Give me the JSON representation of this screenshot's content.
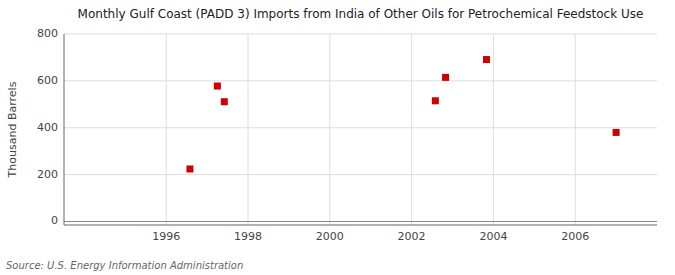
{
  "chart_data": {
    "type": "scatter",
    "title": "Monthly Gulf Coast (PADD 3) Imports from India of Other Oils for Petrochemical Feedstock Use",
    "ylabel": "Thousand Barrels",
    "source": "Source: U.S. Energy Information Administration",
    "x": [
      1996.58,
      1997.25,
      1997.42,
      2002.58,
      2002.83,
      2003.83,
      2007.0
    ],
    "values": [
      224,
      578,
      511,
      515,
      615,
      691,
      380
    ],
    "color": "#cc0000",
    "marker": "square",
    "xlim": [
      1993.5,
      2008.0
    ],
    "ylim": [
      -15,
      800
    ],
    "xticks": [
      1996,
      1998,
      2000,
      2002,
      2004,
      2006
    ],
    "yticks": [
      0,
      200,
      400,
      600,
      800
    ],
    "grid": true
  }
}
